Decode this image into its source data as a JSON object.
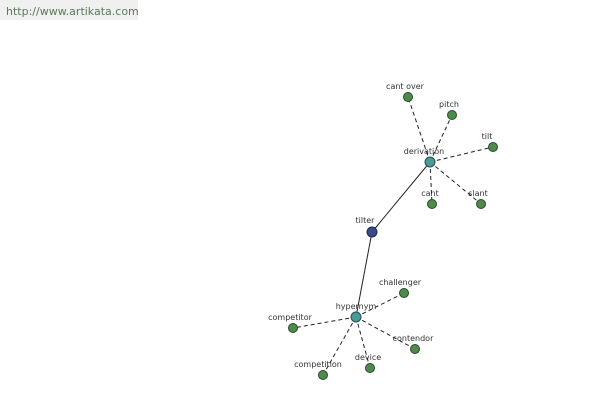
{
  "header": {
    "url": "http://www.artikata.com"
  },
  "nodes": [
    {
      "label": "tilter"
    },
    {
      "label": "derivation"
    },
    {
      "label": "hypernym"
    },
    {
      "label": "cant over"
    },
    {
      "label": "pitch"
    },
    {
      "label": "tilt"
    },
    {
      "label": "cant"
    },
    {
      "label": "slant"
    },
    {
      "label": "challenger"
    },
    {
      "label": "competitor"
    },
    {
      "label": "contendor"
    },
    {
      "label": "device"
    },
    {
      "label": "competition"
    }
  ]
}
